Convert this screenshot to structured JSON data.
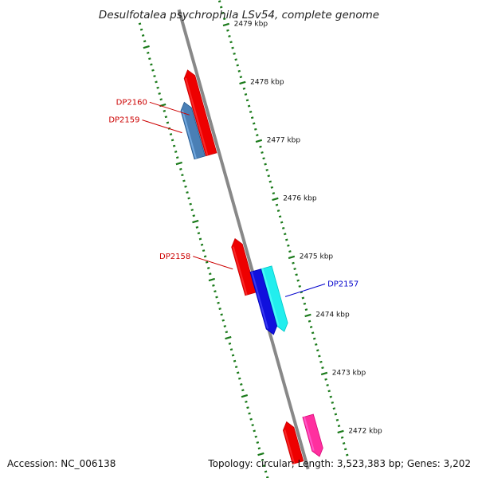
{
  "title": "Desulfotalea psychrophila LSv54, complete genome",
  "footer": {
    "accession": "Accession: NC_006138",
    "summary": "Topology: circular; Length: 3,523,383 bp; Genes: 3,202"
  },
  "colors": {
    "backbone": "#888888",
    "tick": "#1a7a1a",
    "label_red": "#cc0000",
    "label_blue": "#0000cc",
    "gene_red": "#ee0000",
    "gene_steelblue": "#4a7fb5",
    "gene_blue": "#1010dd",
    "gene_cyan": "#22eeee",
    "gene_pink": "#ff2f9f"
  },
  "scale_labels": [
    {
      "kbp": 2479,
      "text": "2479 kbp"
    },
    {
      "kbp": 2478,
      "text": "2478 kbp"
    },
    {
      "kbp": 2477,
      "text": "2477 kbp"
    },
    {
      "kbp": 2476,
      "text": "2476 kbp"
    },
    {
      "kbp": 2475,
      "text": "2475 kbp"
    },
    {
      "kbp": 2474,
      "text": "2474 kbp"
    },
    {
      "kbp": 2473,
      "text": "2473 kbp"
    },
    {
      "kbp": 2472,
      "text": "2472 kbp"
    }
  ],
  "genes": [
    {
      "id": "DP2160",
      "label": "DP2160",
      "strand": "reverse",
      "lane": 1,
      "start_kbp": 2478.45,
      "end_kbp": 2477.0,
      "color": "#ee0000",
      "label_color": "#cc0000"
    },
    {
      "id": "DP2159",
      "label": "DP2159",
      "strand": "reverse",
      "lane": 2,
      "start_kbp": 2477.95,
      "end_kbp": 2477.0,
      "color": "#4a7fb5",
      "label_color": "#cc0000"
    },
    {
      "id": "DP2158",
      "label": "DP2158",
      "strand": "reverse",
      "lane": 1,
      "start_kbp": 2475.55,
      "end_kbp": 2474.6,
      "color": "#ee0000",
      "label_color": "#cc0000"
    },
    {
      "id": "DP2157",
      "label": "DP2157",
      "strand": "forward",
      "lane": 1,
      "start_kbp": 2474.95,
      "end_kbp": 2473.85,
      "color": "#22eeee",
      "label_color": "#0000cc"
    },
    {
      "id": "blue-forward",
      "label": "",
      "strand": "forward",
      "lane": 2,
      "start_kbp": 2474.95,
      "end_kbp": 2473.85,
      "color": "#1010dd",
      "label_color": ""
    },
    {
      "id": "pink-bottom",
      "label": "",
      "strand": "forward",
      "lane": 1,
      "start_kbp": 2472.4,
      "end_kbp": 2471.7,
      "color": "#ff2f9f",
      "label_color": ""
    },
    {
      "id": "red-bottom",
      "label": "",
      "strand": "reverse",
      "lane": 1,
      "start_kbp": 2472.4,
      "end_kbp": 2471.7,
      "color": "#ee0000",
      "label_color": ""
    }
  ]
}
